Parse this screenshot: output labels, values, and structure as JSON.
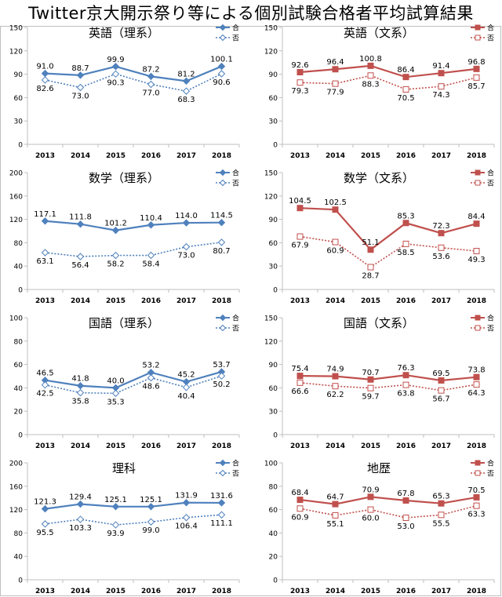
{
  "page_title": "Twitter京大開示祭り等による個別試験合格者平均試算結果",
  "legend_pass": "合",
  "legend_fail": "否",
  "colors": {
    "science_line": "#4f81bd",
    "humanities_line": "#c0504d",
    "axis": "#bfbfbf",
    "text": "#000000"
  },
  "chart_data": [
    {
      "type": "line",
      "title": "英語（理系）",
      "categories": [
        "2013",
        "2014",
        "2015",
        "2016",
        "2017",
        "2018"
      ],
      "ylim": [
        0,
        150
      ],
      "yticks": [
        0,
        30,
        60,
        90,
        120,
        150
      ],
      "series": [
        {
          "name": "合",
          "values": [
            91.0,
            88.7,
            99.9,
            87.2,
            81.2,
            100.1
          ]
        },
        {
          "name": "否",
          "values": [
            82.6,
            73.0,
            90.3,
            77.0,
            68.3,
            90.6
          ]
        }
      ],
      "color_theme": "science"
    },
    {
      "type": "line",
      "title": "英語（文系）",
      "categories": [
        "2013",
        "2014",
        "2015",
        "2016",
        "2017",
        "2018"
      ],
      "ylim": [
        0,
        150
      ],
      "yticks": [
        0,
        30,
        60,
        90,
        120,
        150
      ],
      "series": [
        {
          "name": "合",
          "values": [
            92.6,
            96.4,
            100.8,
            86.4,
            91.4,
            96.8
          ]
        },
        {
          "name": "否",
          "values": [
            79.3,
            77.9,
            88.3,
            70.5,
            74.3,
            85.7
          ]
        }
      ],
      "color_theme": "humanities"
    },
    {
      "type": "line",
      "title": "数学（理系）",
      "categories": [
        "2013",
        "2014",
        "2015",
        "2016",
        "2017",
        "2018"
      ],
      "ylim": [
        0,
        200
      ],
      "yticks": [
        0,
        40,
        80,
        120,
        160,
        200
      ],
      "series": [
        {
          "name": "合",
          "values": [
            117.1,
            111.8,
            101.2,
            110.4,
            114.0,
            114.5
          ]
        },
        {
          "name": "否",
          "values": [
            63.1,
            56.4,
            58.2,
            58.4,
            73.0,
            80.7
          ]
        }
      ],
      "color_theme": "science"
    },
    {
      "type": "line",
      "title": "数学（文系）",
      "categories": [
        "2013",
        "2014",
        "2015",
        "2016",
        "2017",
        "2018"
      ],
      "ylim": [
        0,
        150
      ],
      "yticks": [
        0,
        30,
        60,
        90,
        120,
        150
      ],
      "series": [
        {
          "name": "合",
          "values": [
            104.5,
            102.5,
            51.1,
            85.3,
            72.3,
            84.4
          ]
        },
        {
          "name": "否",
          "values": [
            67.9,
            60.9,
            28.7,
            58.5,
            53.6,
            49.3
          ]
        }
      ],
      "color_theme": "humanities"
    },
    {
      "type": "line",
      "title": "国語（理系）",
      "categories": [
        "2013",
        "2014",
        "2015",
        "2016",
        "2017",
        "2018"
      ],
      "ylim": [
        0,
        100
      ],
      "yticks": [
        0,
        20,
        40,
        60,
        80,
        100
      ],
      "series": [
        {
          "name": "合",
          "values": [
            46.5,
            41.8,
            40.0,
            53.2,
            45.2,
            53.7
          ]
        },
        {
          "name": "否",
          "values": [
            42.5,
            35.8,
            35.3,
            48.6,
            40.4,
            50.2
          ]
        }
      ],
      "color_theme": "science"
    },
    {
      "type": "line",
      "title": "国語（文系）",
      "categories": [
        "2013",
        "2014",
        "2015",
        "2016",
        "2017",
        "2018"
      ],
      "ylim": [
        0,
        150
      ],
      "yticks": [
        0,
        30,
        60,
        90,
        120,
        150
      ],
      "series": [
        {
          "name": "合",
          "values": [
            75.4,
            74.9,
            70.7,
            76.3,
            69.5,
            73.8
          ]
        },
        {
          "name": "否",
          "values": [
            66.6,
            62.2,
            59.7,
            63.8,
            56.7,
            64.3
          ]
        }
      ],
      "color_theme": "humanities"
    },
    {
      "type": "line",
      "title": "理科",
      "categories": [
        "2013",
        "2014",
        "2015",
        "2016",
        "2017",
        "2018"
      ],
      "ylim": [
        0,
        200
      ],
      "yticks": [
        0,
        40,
        80,
        120,
        160,
        200
      ],
      "series": [
        {
          "name": "合",
          "values": [
            121.3,
            129.4,
            125.1,
            125.1,
            131.9,
            131.6
          ]
        },
        {
          "name": "否",
          "values": [
            95.5,
            103.3,
            93.9,
            99.0,
            106.4,
            111.1
          ]
        }
      ],
      "color_theme": "science"
    },
    {
      "type": "line",
      "title": "地歴",
      "categories": [
        "2013",
        "2014",
        "2015",
        "2016",
        "2017",
        "2018"
      ],
      "ylim": [
        0,
        100
      ],
      "yticks": [
        0,
        20,
        40,
        60,
        80,
        100
      ],
      "series": [
        {
          "name": "合",
          "values": [
            68.4,
            64.7,
            70.9,
            67.8,
            65.3,
            70.5
          ]
        },
        {
          "name": "否",
          "values": [
            60.9,
            55.1,
            60.0,
            53.0,
            55.5,
            63.3
          ]
        }
      ],
      "color_theme": "humanities"
    }
  ]
}
